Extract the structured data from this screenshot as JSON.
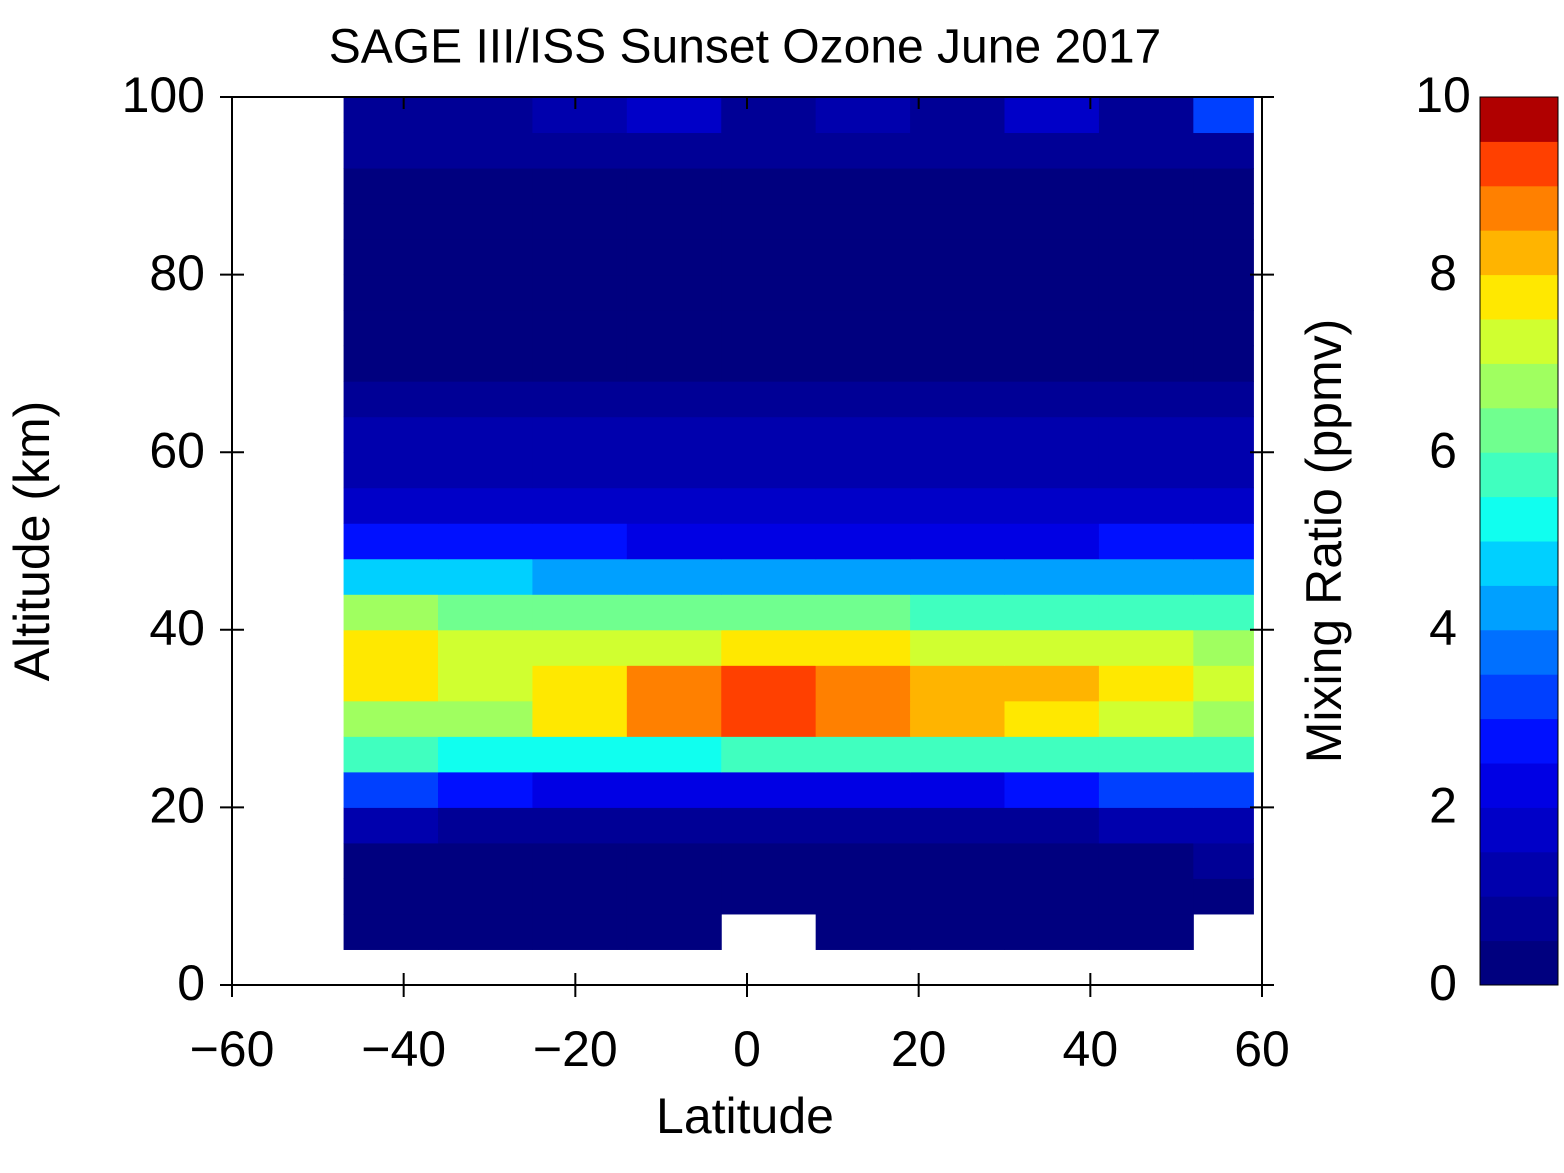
{
  "chart_data": {
    "type": "heatmap",
    "title": "SAGE III/ISS Sunset Ozone June 2017",
    "x_label": "Latitude",
    "y_label": "Altitude (km)",
    "colorbar_label": "Mixing Ratio (ppmv)",
    "xlim": [
      -60,
      60
    ],
    "xticks": [
      {
        "value": -60,
        "label": "−60"
      },
      {
        "value": -40,
        "label": "−40"
      },
      {
        "value": -20,
        "label": "−20"
      },
      0,
      20,
      40,
      60
    ],
    "ylim": [
      0,
      100
    ],
    "yticks": [
      0,
      20,
      40,
      60,
      80,
      100
    ],
    "clim": [
      0,
      10
    ],
    "cticks": [
      0,
      2,
      4,
      6,
      8,
      10
    ],
    "colors": [
      "#00007f",
      "#000096",
      "#0000ad",
      "#0000c8",
      "#0000e4",
      "#0010ff",
      "#0040ff",
      "#0070ff",
      "#00a0ff",
      "#00d0ff",
      "#10ffef",
      "#40ffbf",
      "#70ff8f",
      "#a0ff60",
      "#d0ff30",
      "#ffe800",
      "#ffb400",
      "#ff8000",
      "#ff4000",
      "#e00000"
    ],
    "top_color": "#b00000",
    "xbins": [
      -47,
      -36,
      -25,
      -14,
      -3,
      8,
      19,
      30,
      41,
      52,
      59
    ],
    "ybins": [
      0,
      4,
      8,
      12,
      16,
      20,
      24,
      28,
      32,
      36,
      40,
      44,
      48,
      52,
      56,
      60,
      64,
      68,
      72,
      76,
      80,
      84,
      88,
      92,
      96,
      100
    ],
    "values": [
      [
        null,
        null,
        null,
        null,
        null,
        null,
        null,
        null,
        null,
        null
      ],
      [
        0.3,
        0.3,
        0.3,
        0.3,
        null,
        0.3,
        0.3,
        0.3,
        0.3,
        null
      ],
      [
        0.3,
        0.3,
        0.3,
        0.3,
        0.3,
        0.3,
        0.3,
        0.3,
        0.3,
        0.3
      ],
      [
        0.4,
        0.4,
        0.3,
        0.3,
        0.3,
        0.3,
        0.3,
        0.3,
        0.4,
        0.5
      ],
      [
        1.2,
        0.9,
        0.7,
        0.6,
        0.6,
        0.6,
        0.7,
        0.8,
        1.0,
        1.3
      ],
      [
        3.0,
        2.5,
        2.2,
        2.0,
        2.0,
        2.0,
        2.2,
        2.5,
        3.0,
        3.2
      ],
      [
        5.5,
        5.2,
        5.0,
        5.2,
        5.5,
        5.5,
        5.5,
        5.5,
        5.5,
        5.5
      ],
      [
        6.5,
        6.8,
        7.5,
        8.8,
        9.2,
        8.8,
        8.3,
        7.8,
        7.2,
        6.8
      ],
      [
        7.5,
        7.3,
        7.6,
        8.7,
        9.0,
        8.7,
        8.3,
        8.0,
        7.6,
        7.2
      ],
      [
        7.6,
        7.3,
        7.2,
        7.3,
        7.5,
        7.5,
        7.3,
        7.0,
        7.0,
        6.6
      ],
      [
        6.8,
        6.4,
        6.0,
        6.0,
        6.0,
        6.0,
        5.8,
        5.8,
        5.7,
        5.6
      ],
      [
        4.8,
        4.6,
        4.3,
        4.2,
        4.2,
        4.2,
        4.0,
        4.0,
        4.0,
        4.2
      ],
      [
        2.8,
        2.7,
        2.5,
        2.4,
        2.3,
        2.3,
        2.3,
        2.4,
        2.6,
        2.8
      ],
      [
        1.7,
        1.7,
        1.6,
        1.5,
        1.5,
        1.5,
        1.5,
        1.6,
        1.7,
        1.9
      ],
      [
        1.4,
        1.3,
        1.3,
        1.3,
        1.3,
        1.3,
        1.3,
        1.3,
        1.3,
        1.4
      ],
      [
        1.1,
        1.1,
        1.1,
        1.1,
        1.1,
        1.1,
        1.1,
        1.1,
        1.1,
        1.1
      ],
      [
        0.7,
        0.6,
        0.6,
        0.6,
        0.6,
        0.6,
        0.6,
        0.6,
        0.6,
        0.7
      ],
      [
        0.3,
        0.3,
        0.3,
        0.3,
        0.3,
        0.3,
        0.3,
        0.3,
        0.3,
        0.3
      ],
      [
        0.3,
        0.3,
        0.3,
        0.3,
        0.3,
        0.3,
        0.3,
        0.3,
        0.3,
        0.3
      ],
      [
        0.3,
        0.3,
        0.3,
        0.3,
        0.3,
        0.3,
        0.3,
        0.3,
        0.3,
        0.3
      ],
      [
        0.3,
        0.3,
        0.3,
        0.3,
        0.3,
        0.3,
        0.3,
        0.3,
        0.3,
        0.3
      ],
      [
        0.3,
        0.3,
        0.3,
        0.3,
        0.3,
        0.3,
        0.3,
        0.3,
        0.3,
        0.3
      ],
      [
        0.4,
        0.4,
        0.3,
        0.3,
        0.3,
        0.3,
        0.3,
        0.4,
        0.4,
        0.4
      ],
      [
        0.6,
        0.6,
        0.6,
        0.6,
        0.6,
        0.6,
        0.6,
        0.6,
        0.6,
        0.6
      ],
      [
        0.7,
        0.8,
        1.0,
        1.5,
        0.8,
        1.2,
        0.8,
        1.5,
        0.8,
        3.0
      ]
    ]
  }
}
